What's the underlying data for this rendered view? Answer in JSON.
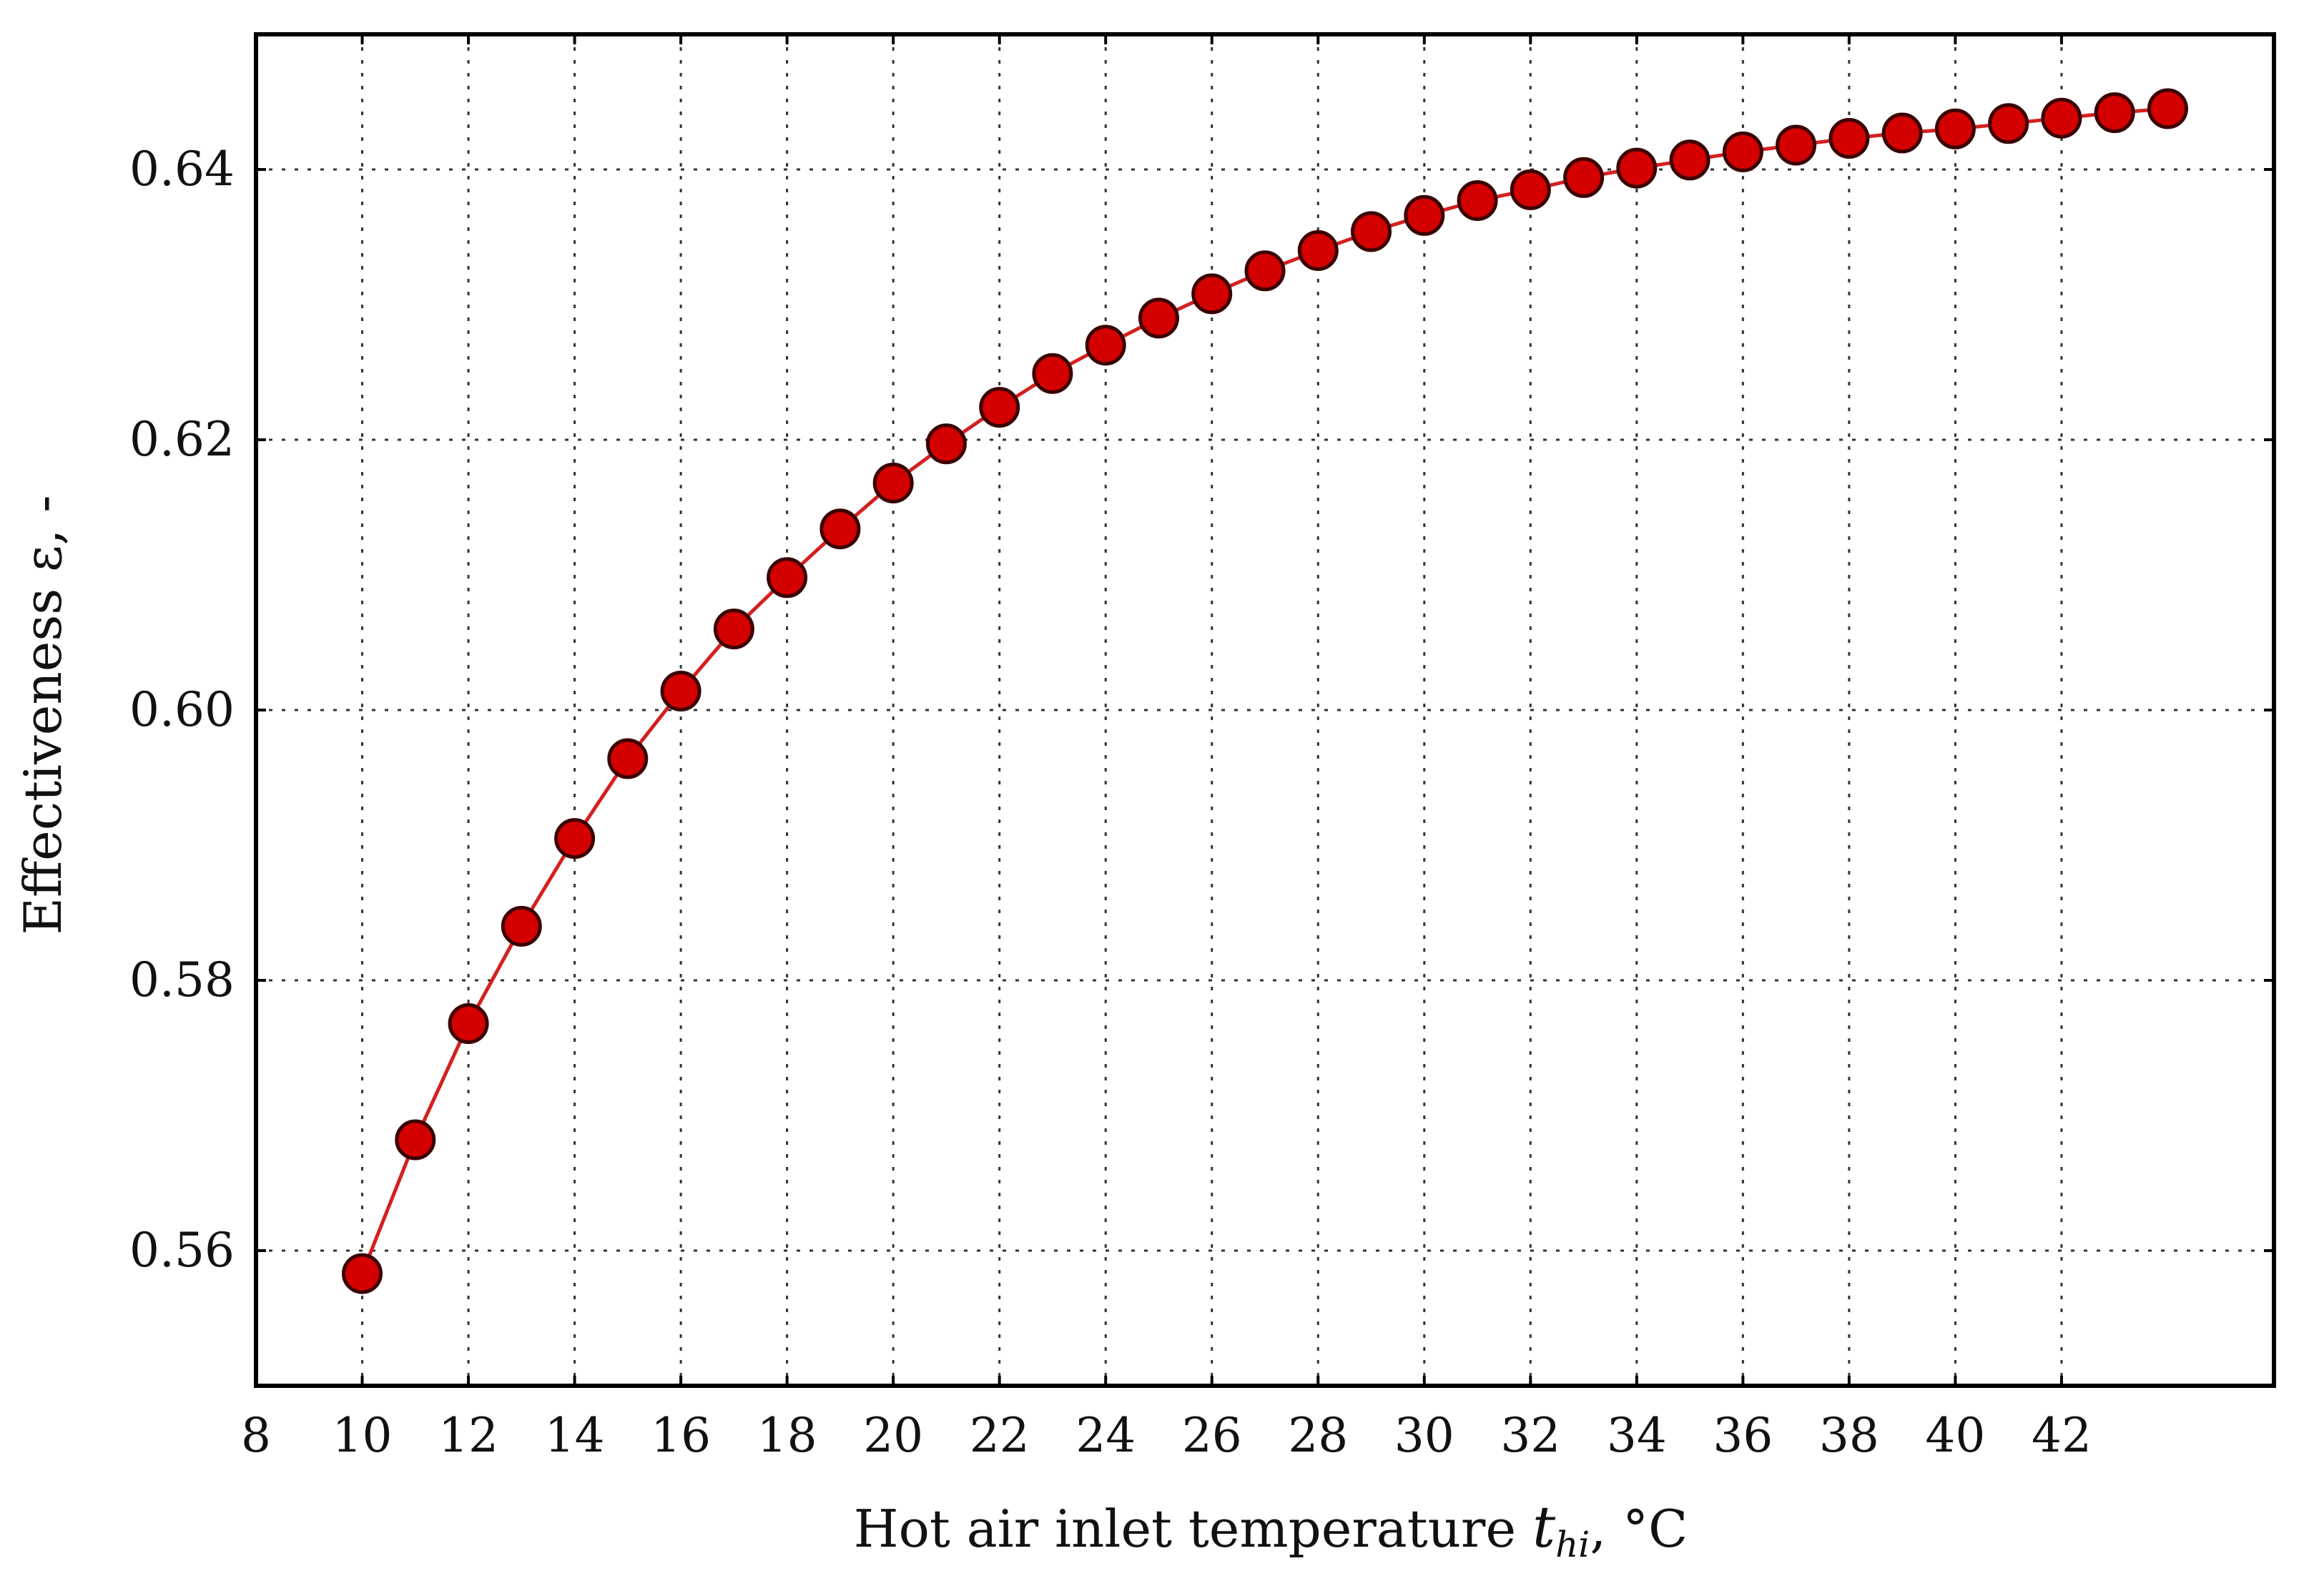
{
  "chart_data": {
    "type": "line",
    "title": "",
    "xlabel": {
      "text": "Hot air inlet temperature ",
      "symbol": "t",
      "subscript": "hi",
      "unit": ", °C"
    },
    "ylabel": "Effectiveness ε, -",
    "xlim": [
      8,
      46
    ],
    "ylim": [
      0.55,
      0.65
    ],
    "xticks": [
      8,
      10,
      12,
      14,
      16,
      18,
      20,
      22,
      24,
      26,
      28,
      30,
      32,
      34,
      36,
      38,
      40,
      42
    ],
    "yticks": [
      "0.56",
      "0.58",
      "0.60",
      "0.62",
      "0.64"
    ],
    "grid": true,
    "legend": "none",
    "series": [
      {
        "color": "#d40000",
        "line_color": "#d42020",
        "marker": "circle",
        "x": [
          10,
          11,
          12,
          13,
          14,
          15,
          16,
          17,
          18,
          19,
          20,
          21,
          22,
          23,
          24,
          25,
          26,
          27,
          28,
          29,
          30,
          31,
          32,
          33,
          34,
          35,
          36,
          37,
          38,
          39,
          40,
          41,
          42,
          43,
          44
        ],
        "y": [
          0.5583,
          0.5682,
          0.5768,
          0.584,
          0.5905,
          0.5964,
          0.6014,
          0.606,
          0.6098,
          0.6134,
          0.6168,
          0.6197,
          0.6224,
          0.6249,
          0.627,
          0.629,
          0.6308,
          0.6325,
          0.634,
          0.6354,
          0.6366,
          0.6377,
          0.6385,
          0.6394,
          0.6401,
          0.6407,
          0.6413,
          0.6418,
          0.6423,
          0.6427,
          0.643,
          0.6434,
          0.6438,
          0.6442,
          0.6445
        ]
      }
    ]
  }
}
